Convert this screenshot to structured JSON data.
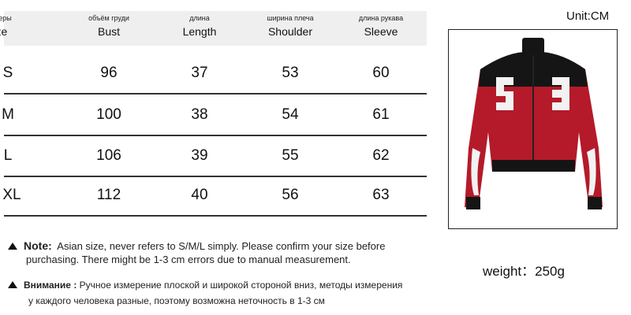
{
  "unit": "Unit:CM",
  "headers": [
    {
      "ru": "размеры",
      "en": "Size"
    },
    {
      "ru": "объём груди",
      "en": "Bust"
    },
    {
      "ru": "длина",
      "en": "Length"
    },
    {
      "ru": "ширина плеча",
      "en": "Shoulder"
    },
    {
      "ru": "длина рукава",
      "en": "Sleeve"
    }
  ],
  "rows": [
    [
      "S",
      "96",
      "37",
      "53",
      "60"
    ],
    [
      "M",
      "100",
      "38",
      "54",
      "61"
    ],
    [
      "L",
      "106",
      "39",
      "55",
      "62"
    ],
    [
      "XL",
      "112",
      "40",
      "56",
      "63"
    ]
  ],
  "note": {
    "label": "Note:",
    "text": "Asian size, never refers to S/M/L simply. Please confirm your size before",
    "text2": "purchasing. There might be 1-3 cm errors due to manual measurement."
  },
  "notice": {
    "label": "Внимание :",
    "text": "Ручное измерение плоской и широкой стороной вниз, методы измерения",
    "text2": "у каждого человека разные, поэтому возможна неточность в 1-3 см"
  },
  "weight": "weight：250g",
  "jacket": {
    "colors": {
      "red": "#b51a2a",
      "black": "#151515",
      "white": "#f2f2f2"
    }
  }
}
